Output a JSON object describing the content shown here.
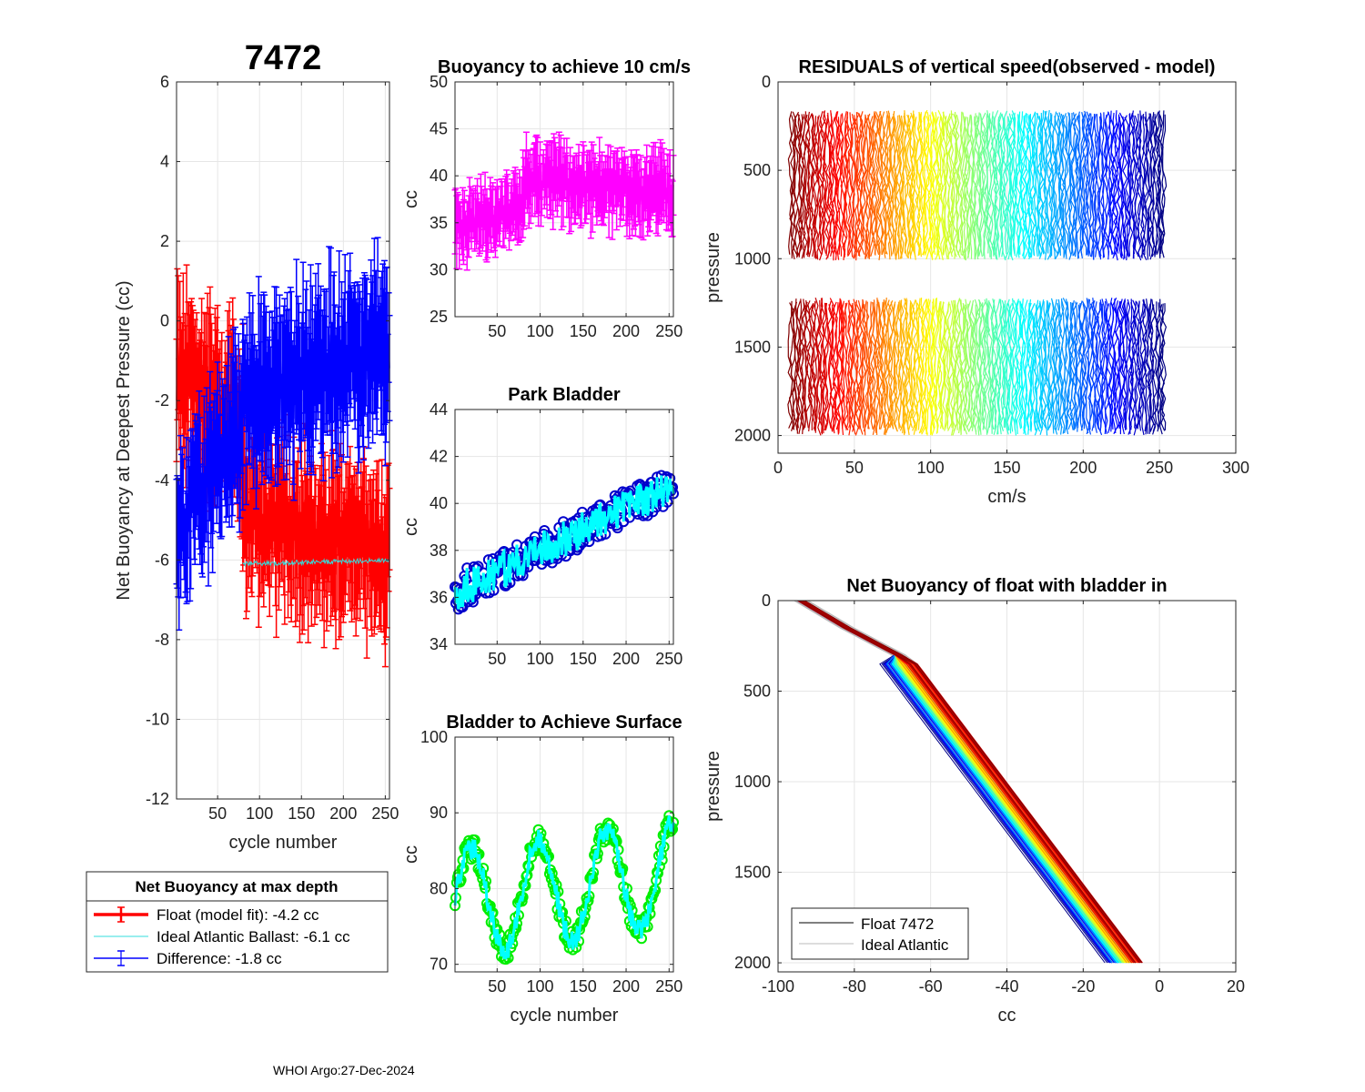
{
  "figure": {
    "float_id": "7472",
    "footer": "WHOI Argo:27-Dec-2024"
  },
  "chart_data": [
    {
      "id": "net-buoyancy",
      "type": "line",
      "title": "7472",
      "xlabel": "cycle number",
      "ylabel": "Net Buoyancy at Deepest Pressure (cc)",
      "xlim": [
        1,
        255
      ],
      "ylim": [
        -12,
        6
      ],
      "xticks": [
        50,
        100,
        150,
        200,
        250
      ],
      "yticks": [
        -12,
        -10,
        -8,
        -6,
        -4,
        -2,
        0,
        2,
        4,
        6
      ],
      "series": [
        {
          "name": "Float (model fit)",
          "color": "#ff0000",
          "segments": [
            {
              "x": [
                1,
                80
              ],
              "y": [
                -1.2,
                -2.6
              ],
              "spread": 0.9,
              "err": 1.6
            },
            {
              "x": [
                80,
                255
              ],
              "y": [
                -5.0,
                -5.9
              ],
              "spread": 0.9,
              "err": 1.5
            }
          ]
        },
        {
          "name": "Ideal Atlantic Ballast",
          "color": "#33dddd",
          "segments": [
            {
              "x": [
                80,
                255
              ],
              "y": [
                -6.1,
                -6.0
              ],
              "spread": 0.06,
              "err": 0
            }
          ]
        },
        {
          "name": "Difference",
          "color": "#0000ff",
          "segments": [
            {
              "x": [
                1,
                80
              ],
              "y": [
                -5.3,
                -2.6
              ],
              "spread": 0.9,
              "err": 1.5
            },
            {
              "x": [
                80,
                255
              ],
              "y": [
                -2.0,
                -0.6
              ],
              "spread": 0.9,
              "err": 1.6
            }
          ]
        }
      ],
      "legend": {
        "title": "Net Buoyancy at max depth",
        "entries": [
          "Float (model fit):  -4.2 cc",
          "Ideal Atlantic Ballast:  -6.1 cc",
          "Difference:  -1.8 cc"
        ],
        "location": "below-left"
      }
    },
    {
      "id": "buoyancy-10cms",
      "type": "line",
      "title": "Buoyancy to achieve 10 cm/s",
      "xlabel": "",
      "ylabel": "cc",
      "xlim": [
        1,
        255
      ],
      "ylim": [
        25,
        50
      ],
      "xticks": [
        50,
        100,
        150,
        200,
        250
      ],
      "yticks": [
        25,
        30,
        35,
        40,
        45,
        50
      ],
      "series": [
        {
          "name": "buoyancy",
          "color": "#ff00ff",
          "segments": [
            {
              "x": [
                1,
                80
              ],
              "y": [
                34.5,
                36.5
              ],
              "spread": 1.6,
              "err": 2.8
            },
            {
              "x": [
                80,
                255
              ],
              "y": [
                39.5,
                38.0
              ],
              "spread": 1.8,
              "err": 3.0
            }
          ]
        }
      ]
    },
    {
      "id": "park-bladder",
      "type": "line",
      "title": "Park Bladder",
      "xlabel": "",
      "ylabel": "cc",
      "xlim": [
        1,
        255
      ],
      "ylim": [
        34,
        44
      ],
      "xticks": [
        50,
        100,
        150,
        200,
        250
      ],
      "yticks": [
        34,
        36,
        38,
        40,
        42,
        44
      ],
      "markers": true,
      "series": [
        {
          "name": "park bladder",
          "color": "#00ffff",
          "marker_color": "#0000cc",
          "segments": [
            {
              "x": [
                1,
                255
              ],
              "y": [
                36.2,
                40.8
              ],
              "spread": 0.8,
              "err": 0
            }
          ]
        }
      ]
    },
    {
      "id": "bladder-surface",
      "type": "line",
      "title": "Bladder to Achieve Surface",
      "xlabel": "cycle number",
      "ylabel": "cc",
      "xlim": [
        1,
        255
      ],
      "ylim": [
        69,
        100
      ],
      "xticks": [
        50,
        100,
        150,
        200,
        250
      ],
      "yticks": [
        70,
        80,
        90,
        100
      ],
      "markers": true,
      "oscillating": true,
      "series": [
        {
          "name": "surface bladder",
          "color": "#00ffff",
          "marker_color": "#00ee00",
          "segments": [
            {
              "x": [
                1,
                255
              ],
              "y": [
                78,
                82
              ],
              "spread": 7,
              "err": 0
            }
          ]
        }
      ]
    },
    {
      "id": "residuals",
      "type": "line",
      "title": "RESIDUALS of vertical speed(observed - model)",
      "xlabel": "cm/s",
      "ylabel": "pressure",
      "xlim": [
        0,
        300
      ],
      "ylim": [
        2100,
        0
      ],
      "xticks": [
        0,
        50,
        100,
        150,
        200,
        250,
        300
      ],
      "yticks": [
        0,
        500,
        1000,
        1500,
        2000
      ],
      "profiles": {
        "count": 250,
        "x_offset_start": 8,
        "x_offset_end": 253,
        "upper_band": [
          160,
          1010
        ],
        "lower_band": [
          1220,
          2000
        ],
        "colormap": "jet"
      }
    },
    {
      "id": "net-buoyancy-bladder-in",
      "type": "line",
      "title": "Net Buoyancy of float with bladder in",
      "xlabel": "cc",
      "ylabel": "pressure",
      "xlim": [
        -100,
        20
      ],
      "ylim": [
        2050,
        0
      ],
      "xticks": [
        -100,
        -80,
        -60,
        -40,
        -20,
        0,
        20
      ],
      "yticks": [
        0,
        500,
        1000,
        1500,
        2000
      ],
      "profiles": {
        "count": 120,
        "surface_cc": -94,
        "deep_cc": -5,
        "deep_pressure": 2000,
        "colormap": "jet"
      },
      "legend": {
        "entries": [
          "Float 7472",
          "Ideal Atlantic"
        ],
        "location": "lower-left"
      }
    }
  ]
}
